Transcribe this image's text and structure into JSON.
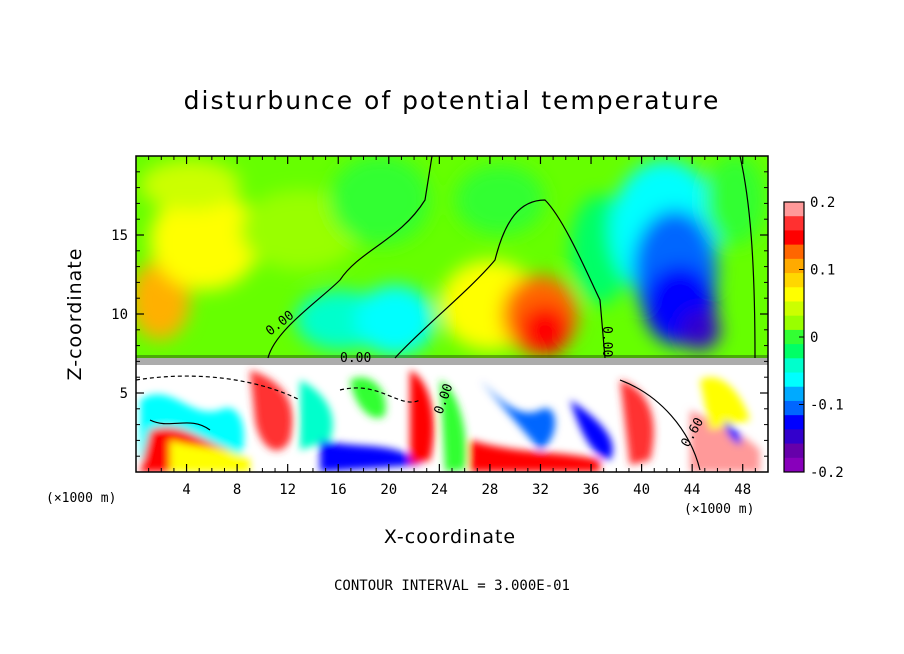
{
  "chart_data": {
    "type": "heatmap",
    "title": "disturbunce of potential temperature",
    "xlabel": "X-coordinate",
    "ylabel": "Z-coordinate",
    "x_unit": "(×1000 m)",
    "y_unit": "(×1000 m)",
    "xlim": [
      0,
      50
    ],
    "ylim": [
      0,
      20
    ],
    "x_ticks": [
      4,
      8,
      12,
      16,
      20,
      24,
      28,
      32,
      36,
      40,
      44,
      48
    ],
    "y_ticks": [
      5,
      10,
      15
    ],
    "colorbar": {
      "range": [
        -0.2,
        0.2
      ],
      "tick_labels": [
        "0.2",
        "0.1",
        "0",
        "-0.1",
        "-0.2"
      ],
      "tick_values": [
        0.2,
        0.1,
        0,
        -0.1,
        -0.2
      ],
      "colors": [
        "#ff9999",
        "#ff3030",
        "#ff0000",
        "#ff6600",
        "#ffaa00",
        "#ffd700",
        "#ffff00",
        "#ccff00",
        "#99ff00",
        "#33ff33",
        "#00ff66",
        "#00ffcc",
        "#00ffff",
        "#00aaff",
        "#0066ff",
        "#0000ff",
        "#3300cc",
        "#6600aa",
        "#8800bb"
      ]
    },
    "contour_labels": [
      "0.00",
      "0.00",
      "0.00",
      "0.00",
      "0.60"
    ],
    "contour_interval": "CONTOUR INTERVAL = 3.000E-01"
  }
}
